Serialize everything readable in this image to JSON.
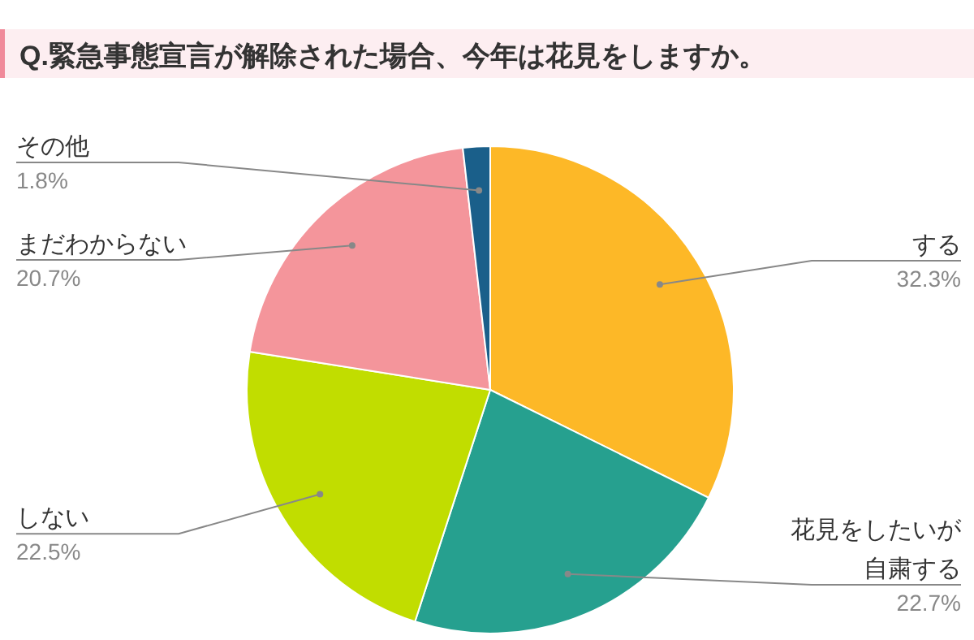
{
  "chart_data": {
    "type": "pie",
    "title": "Q.緊急事態宣言が解除された場合、今年は花見をしますか。",
    "categories": [
      "する",
      "花見をしたいが自粛する",
      "しない",
      "まだわからない",
      "その他"
    ],
    "values": [
      32.3,
      22.7,
      22.5,
      20.7,
      1.8
    ],
    "value_labels": [
      "32.3%",
      "22.7%",
      "22.5%",
      "20.7%",
      "1.8%"
    ],
    "colors": [
      "#fdb827",
      "#26a08f",
      "#c1dd00",
      "#f4959b",
      "#1a5f8a"
    ]
  }
}
